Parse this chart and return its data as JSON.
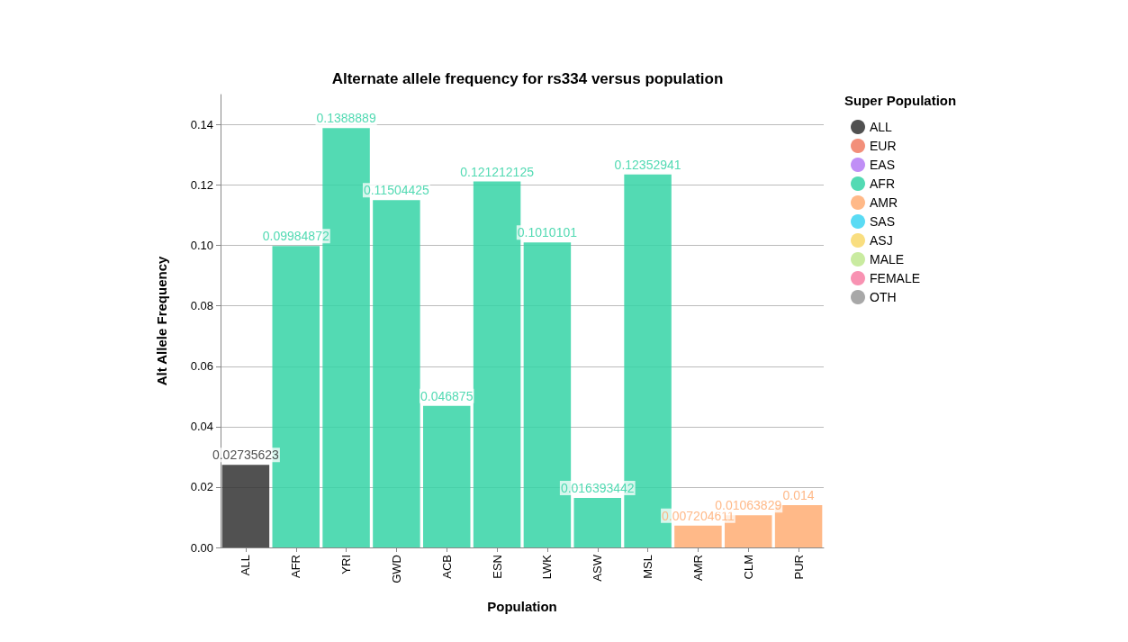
{
  "chart_data": {
    "type": "bar",
    "title": "Alternate allele frequency for rs334 versus population",
    "xlabel": "Population",
    "ylabel": "Alt Allele Frequency",
    "legend_title": "Super Population",
    "categories": [
      "ALL",
      "AFR",
      "YRI",
      "GWD",
      "ACB",
      "ESN",
      "LWK",
      "ASW",
      "MSL",
      "AMR",
      "CLM",
      "PUR"
    ],
    "stacked": true,
    "series": [
      {
        "name": "ALL",
        "color": "#333333",
        "values": [
          0.02735623,
          null,
          null,
          null,
          null,
          null,
          null,
          null,
          null,
          null,
          null,
          null
        ],
        "value_labels": [
          "0.02735623",
          null,
          null,
          null,
          null,
          null,
          null,
          null,
          null,
          null,
          null,
          null
        ]
      },
      {
        "name": "EUR",
        "color": "#f07b63",
        "values": [
          null,
          null,
          null,
          null,
          null,
          null,
          null,
          null,
          null,
          null,
          null,
          null
        ]
      },
      {
        "name": "EAS",
        "color": "#b57bf5",
        "values": [
          null,
          null,
          null,
          null,
          null,
          null,
          null,
          null,
          null,
          null,
          null,
          null
        ]
      },
      {
        "name": "AFR",
        "color": "#35d3a6",
        "values": [
          null,
          0.09984872,
          0.1388889,
          0.11504425,
          0.046875,
          0.121212125,
          0.1010101,
          0.016393442,
          0.12352941,
          null,
          null,
          null
        ],
        "value_labels": [
          null,
          "0.09984872",
          "0.1388889",
          "0.11504425",
          "0.046875",
          "0.121212125",
          "0.1010101",
          "0.016393442",
          "0.12352941",
          null,
          null,
          null
        ]
      },
      {
        "name": "AMR",
        "color": "#ffad73",
        "values": [
          null,
          null,
          null,
          null,
          null,
          null,
          null,
          null,
          null,
          0.007204611,
          0.01063829,
          0.014
        ],
        "value_labels": [
          null,
          null,
          null,
          null,
          null,
          null,
          null,
          null,
          null,
          "0.007204611",
          "0.01063829",
          "0.014"
        ]
      },
      {
        "name": "SAS",
        "color": "#3dd5f2",
        "values": [
          null,
          null,
          null,
          null,
          null,
          null,
          null,
          null,
          null,
          null,
          null,
          null
        ]
      },
      {
        "name": "ASJ",
        "color": "#f8d86a",
        "values": [
          null,
          null,
          null,
          null,
          null,
          null,
          null,
          null,
          null,
          null,
          null,
          null
        ]
      },
      {
        "name": "MALE",
        "color": "#bfe88f",
        "values": [
          null,
          null,
          null,
          null,
          null,
          null,
          null,
          null,
          null,
          null,
          null,
          null
        ]
      },
      {
        "name": "FEMALE",
        "color": "#f77fa5",
        "values": [
          null,
          null,
          null,
          null,
          null,
          null,
          null,
          null,
          null,
          null,
          null,
          null
        ]
      },
      {
        "name": "OTH",
        "color": "#999999",
        "values": [
          null,
          null,
          null,
          null,
          null,
          null,
          null,
          null,
          null,
          null,
          null,
          null
        ]
      }
    ],
    "ylim": [
      0,
      0.15
    ],
    "yticks": [
      {
        "value": 0,
        "label": "0.00"
      },
      {
        "value": 0.02,
        "label": "0.02"
      },
      {
        "value": 0.04,
        "label": "0.04"
      },
      {
        "value": 0.06,
        "label": "0.06"
      },
      {
        "value": 0.08,
        "label": "0.08"
      },
      {
        "value": 0.1,
        "label": "0.10"
      },
      {
        "value": 0.12,
        "label": "0.12"
      },
      {
        "value": 0.14,
        "label": "0.14"
      }
    ],
    "grid": "y",
    "legend": "right"
  }
}
